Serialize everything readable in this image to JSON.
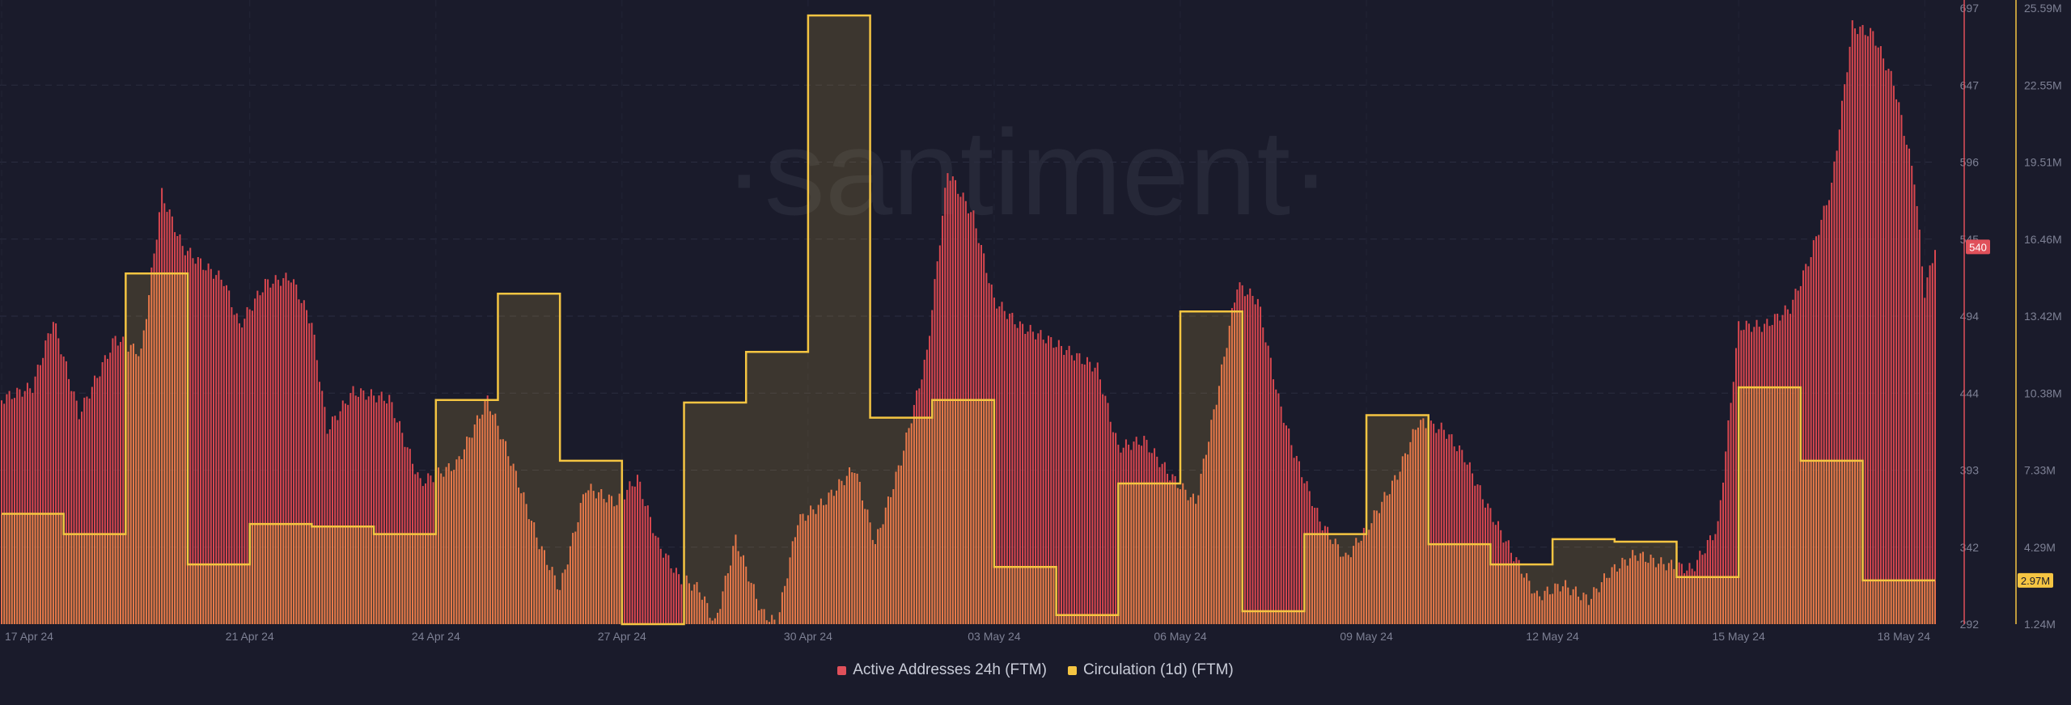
{
  "watermark": "·santiment·",
  "chart_data": {
    "type": "bar",
    "x_range": [
      "2024-04-17",
      "2024-05-18"
    ],
    "x_tick_labels": [
      "17 Apr 24",
      "21 Apr 24",
      "24 Apr 24",
      "27 Apr 24",
      "30 Apr 24",
      "03 May 24",
      "06 May 24",
      "09 May 24",
      "12 May 24",
      "15 May 24",
      "18 May 24"
    ],
    "x_tick_dates": [
      "2024-04-17",
      "2024-04-21",
      "2024-04-24",
      "2024-04-27",
      "2024-04-30",
      "2024-05-03",
      "2024-05-06",
      "2024-05-09",
      "2024-05-12",
      "2024-05-15",
      "2024-05-18"
    ],
    "y_left": {
      "min": 292,
      "max": 697,
      "tick_labels": [
        "697",
        "647",
        "596",
        "545",
        "494",
        "444",
        "393",
        "342",
        "292"
      ]
    },
    "y_right": {
      "min": 1.24,
      "max": 25.59,
      "unit": "M",
      "tick_labels": [
        "25.59M",
        "22.55M",
        "19.51M",
        "16.46M",
        "13.42M",
        "10.38M",
        "7.33M",
        "4.29M",
        "1.24M"
      ]
    },
    "grid": true,
    "legend_position": "bottom-center",
    "series": [
      {
        "name": "Active Addresses 24h (FTM)",
        "type": "bar",
        "axis": "left",
        "color": "#e0505a",
        "last_value_label": "540",
        "hourly_anchors": [
          [
            "2024-04-17T00:00",
            440
          ],
          [
            "2024-04-17T12:00",
            448
          ],
          [
            "2024-04-17T20:00",
            492
          ],
          [
            "2024-04-18T06:00",
            430
          ],
          [
            "2024-04-18T20:00",
            480
          ],
          [
            "2024-04-19T06:00",
            470
          ],
          [
            "2024-04-19T14:00",
            575
          ],
          [
            "2024-04-19T22:00",
            540
          ],
          [
            "2024-04-20T06:00",
            528
          ],
          [
            "2024-04-20T14:00",
            518
          ],
          [
            "2024-04-20T20:00",
            488
          ],
          [
            "2024-04-21T06:00",
            516
          ],
          [
            "2024-04-21T16:00",
            520
          ],
          [
            "2024-04-22T00:00",
            490
          ],
          [
            "2024-04-22T06:00",
            420
          ],
          [
            "2024-04-22T16:00",
            445
          ],
          [
            "2024-04-23T06:00",
            440
          ],
          [
            "2024-04-23T18:00",
            385
          ],
          [
            "2024-04-24T08:00",
            397
          ],
          [
            "2024-04-24T20:00",
            440
          ],
          [
            "2024-04-25T06:00",
            395
          ],
          [
            "2024-04-25T16:00",
            345
          ],
          [
            "2024-04-26T00:00",
            315
          ],
          [
            "2024-04-26T10:00",
            382
          ],
          [
            "2024-04-26T22:00",
            372
          ],
          [
            "2024-04-27T06:00",
            388
          ],
          [
            "2024-04-27T14:00",
            345
          ],
          [
            "2024-04-27T22:00",
            323
          ],
          [
            "2024-04-28T06:00",
            315
          ],
          [
            "2024-04-28T12:00",
            292
          ],
          [
            "2024-04-28T20:00",
            348
          ],
          [
            "2024-04-29T06:00",
            300
          ],
          [
            "2024-04-29T12:00",
            292
          ],
          [
            "2024-04-29T20:00",
            360
          ],
          [
            "2024-04-30T06:00",
            372
          ],
          [
            "2024-04-30T18:00",
            395
          ],
          [
            "2024-05-01T02:00",
            345
          ],
          [
            "2024-05-01T12:00",
            400
          ],
          [
            "2024-05-01T22:00",
            470
          ],
          [
            "2024-05-02T06:00",
            590
          ],
          [
            "2024-05-02T16:00",
            560
          ],
          [
            "2024-05-03T00:00",
            505
          ],
          [
            "2024-05-03T10:00",
            488
          ],
          [
            "2024-05-03T20:00",
            480
          ],
          [
            "2024-05-04T06:00",
            470
          ],
          [
            "2024-05-04T16:00",
            460
          ],
          [
            "2024-05-05T00:00",
            408
          ],
          [
            "2024-05-05T10:00",
            413
          ],
          [
            "2024-05-05T20:00",
            390
          ],
          [
            "2024-05-06T06:00",
            372
          ],
          [
            "2024-05-06T14:00",
            440
          ],
          [
            "2024-05-06T22:00",
            515
          ],
          [
            "2024-05-07T06:00",
            505
          ],
          [
            "2024-05-07T14:00",
            440
          ],
          [
            "2024-05-07T20:00",
            405
          ],
          [
            "2024-05-08T06:00",
            360
          ],
          [
            "2024-05-08T16:00",
            335
          ],
          [
            "2024-05-09T02:00",
            360
          ],
          [
            "2024-05-09T12:00",
            390
          ],
          [
            "2024-05-09T20:00",
            425
          ],
          [
            "2024-05-10T06:00",
            420
          ],
          [
            "2024-05-10T14:00",
            402
          ],
          [
            "2024-05-10T22:00",
            372
          ],
          [
            "2024-05-11T08:00",
            340
          ],
          [
            "2024-05-11T18:00",
            310
          ],
          [
            "2024-05-12T04:00",
            318
          ],
          [
            "2024-05-12T14:00",
            308
          ],
          [
            "2024-05-12T22:00",
            326
          ],
          [
            "2024-05-13T08:00",
            338
          ],
          [
            "2024-05-13T18:00",
            332
          ],
          [
            "2024-05-14T06:00",
            328
          ],
          [
            "2024-05-14T16:00",
            356
          ],
          [
            "2024-05-15T00:00",
            488
          ],
          [
            "2024-05-15T10:00",
            488
          ],
          [
            "2024-05-15T20:00",
            500
          ],
          [
            "2024-05-16T04:00",
            535
          ],
          [
            "2024-05-16T12:00",
            580
          ],
          [
            "2024-05-16T20:00",
            685
          ],
          [
            "2024-05-17T04:00",
            680
          ],
          [
            "2024-05-17T12:00",
            648
          ],
          [
            "2024-05-17T20:00",
            585
          ],
          [
            "2024-05-18T00:00",
            510
          ],
          [
            "2024-05-18T04:00",
            540
          ]
        ]
      },
      {
        "name": "Circulation (1d) (FTM)",
        "type": "step",
        "axis": "right",
        "color": "#f5c542",
        "last_value_label": "2.97M",
        "dates": [
          "2024-04-17",
          "2024-04-18",
          "2024-04-19",
          "2024-04-20",
          "2024-04-21",
          "2024-04-22",
          "2024-04-23",
          "2024-04-24",
          "2024-04-25",
          "2024-04-26",
          "2024-04-27",
          "2024-04-28",
          "2024-04-29",
          "2024-04-30",
          "2024-05-01",
          "2024-05-02",
          "2024-05-03",
          "2024-05-04",
          "2024-05-05",
          "2024-05-06",
          "2024-05-07",
          "2024-05-08",
          "2024-05-09",
          "2024-05-10",
          "2024-05-11",
          "2024-05-12",
          "2024-05-13",
          "2024-05-14",
          "2024-05-15",
          "2024-05-16",
          "2024-05-17",
          "2024-05-18"
        ],
        "values_millions": [
          5.6,
          4.8,
          15.1,
          3.6,
          5.2,
          5.1,
          4.8,
          10.1,
          14.3,
          7.7,
          1.24,
          10.0,
          12.0,
          25.3,
          9.4,
          10.1,
          3.5,
          1.6,
          6.8,
          13.6,
          1.75,
          4.8,
          9.5,
          4.4,
          3.6,
          4.6,
          4.5,
          3.1,
          10.6,
          7.7,
          2.97,
          2.97
        ]
      }
    ]
  }
}
